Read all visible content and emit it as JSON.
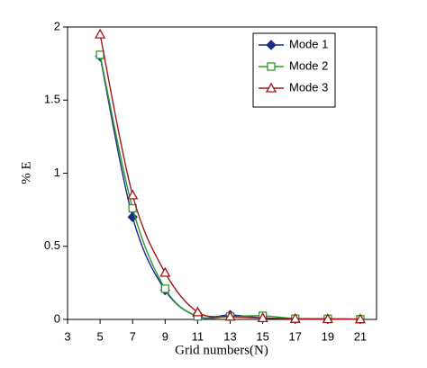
{
  "chart_data": {
    "type": "line",
    "x_label": "Grid numbers(N)",
    "y_label": "% E",
    "x": [
      5,
      7,
      9,
      11,
      13,
      15,
      17,
      19,
      21
    ],
    "series": [
      {
        "name": "Mode 1",
        "color": "#1c2a8a",
        "marker": "diamond",
        "values": [
          1.8,
          0.7,
          0.2,
          0.02,
          0.03,
          0.01,
          0.005,
          0.003,
          0.002
        ]
      },
      {
        "name": "Mode 2",
        "color": "#2e9b2e",
        "marker": "square",
        "values": [
          1.81,
          0.76,
          0.21,
          0.02,
          0.02,
          0.025,
          0.005,
          0.004,
          0.002
        ]
      },
      {
        "name": "Mode 3",
        "color": "#a01818",
        "marker": "triangle",
        "values": [
          1.95,
          0.85,
          0.32,
          0.05,
          0.02,
          0.01,
          0.005,
          0.003,
          0.002
        ]
      }
    ],
    "xlim": [
      3,
      22
    ],
    "xticks": [
      3,
      5,
      7,
      9,
      11,
      13,
      15,
      17,
      19,
      21
    ],
    "ylim": [
      0,
      2
    ],
    "yticks": [
      0,
      0.5,
      1,
      1.5,
      2
    ],
    "legend": "top-right"
  }
}
